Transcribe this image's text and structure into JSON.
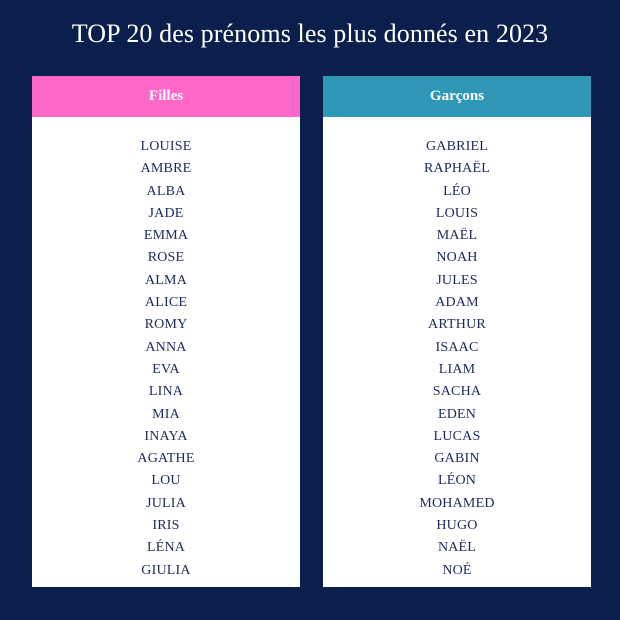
{
  "title": "TOP 20 des prénoms les plus donnés en 2023",
  "colors": {
    "background": "#0b1f4d",
    "girls_header": "#ff68c9",
    "boys_header": "#2f98b6",
    "name_text": "#1a2a5c"
  },
  "girls": {
    "header": "Filles",
    "names": [
      "LOUISE",
      "AMBRE",
      "ALBA",
      "JADE",
      "EMMA",
      "ROSE",
      "ALMA",
      "ALICE",
      "ROMY",
      "ANNA",
      "EVA",
      "LINA",
      "MIA",
      "INAYA",
      "AGATHE",
      "LOU",
      "JULIA",
      "IRIS",
      "LÉNA",
      "GIULIA"
    ]
  },
  "boys": {
    "header": "Garçons",
    "names": [
      "GABRIEL",
      "RAPHAËL",
      "LÉO",
      "LOUIS",
      "MAËL",
      "NOAH",
      "JULES",
      "ADAM",
      "ARTHUR",
      "ISAAC",
      "LIAM",
      "SACHA",
      "EDEN",
      "LUCAS",
      "GABIN",
      "LÉON",
      "MOHAMED",
      "HUGO",
      "NAËL",
      "NOÉ"
    ]
  }
}
